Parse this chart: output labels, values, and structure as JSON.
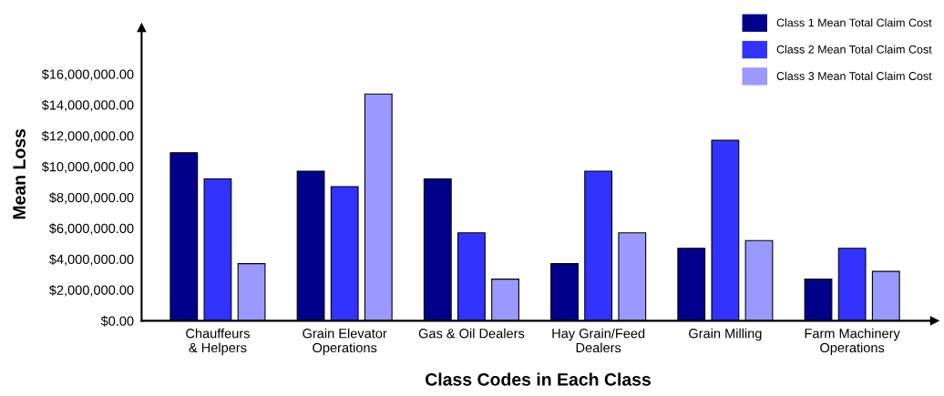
{
  "chart_data": {
    "type": "bar",
    "xlabel": "Class Codes in Each Class",
    "ylabel": "Mean Loss",
    "categories": [
      "Chauffeurs\n& Helpers",
      "Grain Elevator\nOperations",
      "Gas & Oil Dealers",
      "Hay Grain/Feed\nDealers",
      "Grain Milling",
      "Farm Machinery\nOperations"
    ],
    "series": [
      {
        "name": "Class 1 Mean Total Claim Cost",
        "color": "#00008b",
        "values": [
          10900000,
          9700000,
          9200000,
          3700000,
          4700000,
          2700000
        ]
      },
      {
        "name": "Class 2 Mean Total Claim Cost",
        "color": "#3333ff",
        "values": [
          9200000,
          8700000,
          5700000,
          9700000,
          11700000,
          4700000
        ]
      },
      {
        "name": "Class 3 Mean Total Claim Cost",
        "color": "#9999ff",
        "values": [
          3700000,
          14700000,
          2700000,
          5700000,
          5200000,
          3200000
        ]
      }
    ],
    "ylim": [
      0,
      19000000
    ],
    "yticks": [
      {
        "value": 0,
        "label": "$0.00"
      },
      {
        "value": 2000000,
        "label": "$2,000,000.00"
      },
      {
        "value": 4000000,
        "label": "$4,000,000.00"
      },
      {
        "value": 6000000,
        "label": "$6,000,000.00"
      },
      {
        "value": 8000000,
        "label": "$8,000,000.00"
      },
      {
        "value": 10000000,
        "label": "$10,000,000.00"
      },
      {
        "value": 12000000,
        "label": "$12,000,000.00"
      },
      {
        "value": 14000000,
        "label": "$14,000,000.00"
      },
      {
        "value": 16000000,
        "label": "$16,000,000.00"
      }
    ],
    "grid": false,
    "legend": "top right"
  }
}
